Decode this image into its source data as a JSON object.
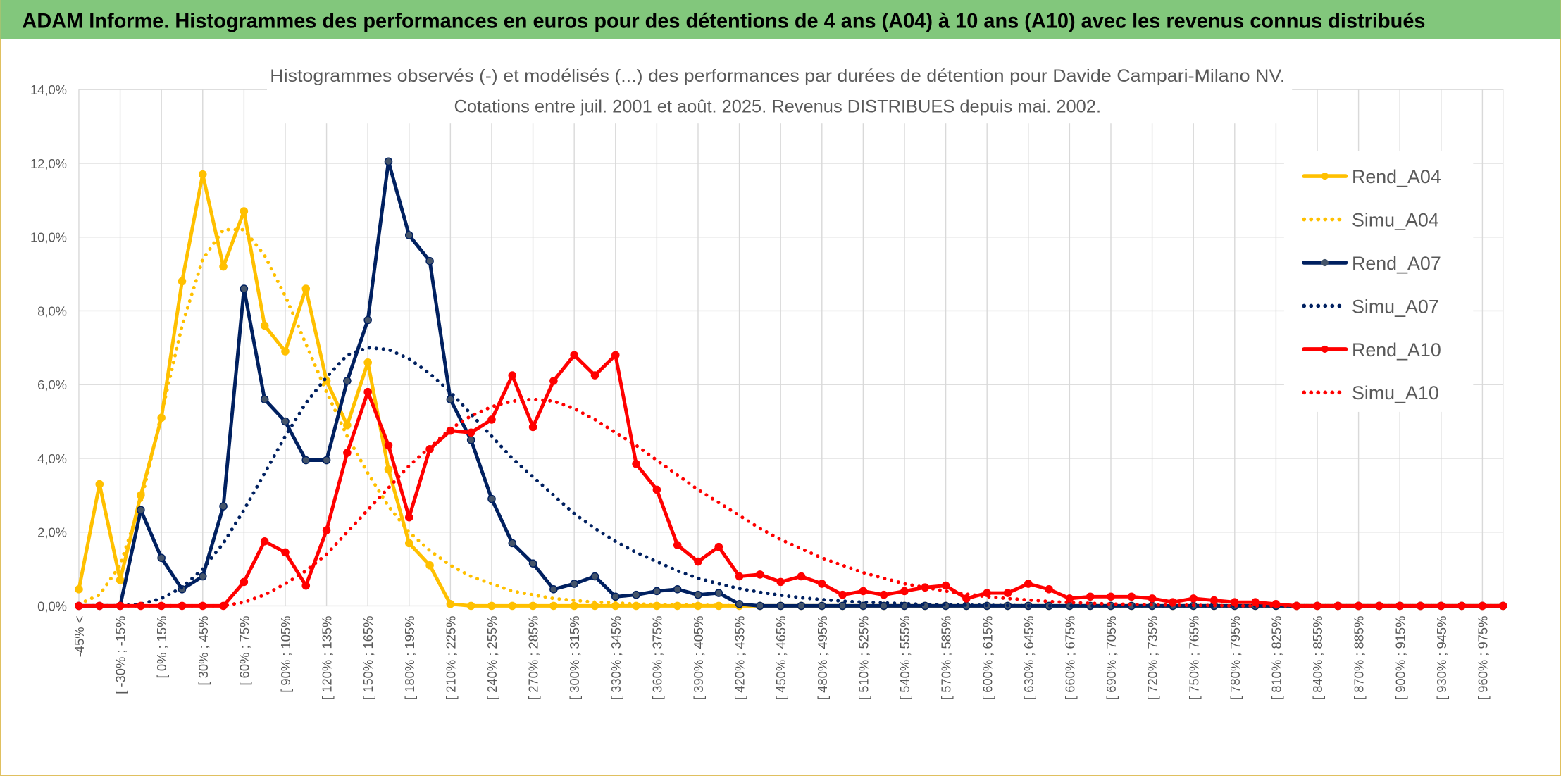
{
  "header": {
    "title": "ADAM Informe. Histogrammes des performances en euros pour des détentions de 4 ans (A04) à 10 ans (A10) avec les revenus connus distribués"
  },
  "chart_data": {
    "type": "line",
    "title": "Histogrammes observés (-) et modélisés (...) des performances par durées de détention pour Davide Campari-Milano NV.",
    "subtitle": "Cotations entre juil. 2001 et août. 2025. Revenus DISTRIBUES depuis mai. 2002.",
    "categories": [
      "-45% <",
      null,
      "[ -30% ; -15%",
      null,
      "[ 0% ; 15%",
      null,
      "[ 30% ; 45%",
      null,
      "[ 60% ; 75%",
      null,
      "[ 90% ; 105%",
      null,
      "[ 120% ; 135%",
      null,
      "[ 150% ; 165%",
      null,
      "[ 180% ; 195%",
      null,
      "[ 210% ; 225%",
      null,
      "[ 240% ; 255%",
      null,
      "[ 270% ; 285%",
      null,
      "[ 300% ; 315%",
      null,
      "[ 330% ; 345%",
      null,
      "[ 360% ; 375%",
      null,
      "[ 390% ; 405%",
      null,
      "[ 420% ; 435%",
      null,
      "[ 450% ; 465%",
      null,
      "[ 480% ; 495%",
      null,
      "[ 510% ; 525%",
      null,
      "[ 540% ; 555%",
      null,
      "[ 570% ; 585%",
      null,
      "[ 600% ; 615%",
      null,
      "[ 630% ; 645%",
      null,
      "[ 660% ; 675%",
      null,
      "[ 690% ; 705%",
      null,
      "[ 720% ; 735%",
      null,
      "[ 750% ; 765%",
      null,
      "[ 780% ; 795%",
      null,
      "[ 810% ; 825%",
      null,
      "[ 840% ; 855%",
      null,
      "[ 870% ; 885%",
      null,
      "[ 900% ; 915%",
      null,
      "[ 930% ; 945%",
      null,
      "[ 960% ; 975%",
      null
    ],
    "series": [
      {
        "name": "Rend_A04",
        "color": "#ffc000",
        "style": "solid",
        "markers": true,
        "values": [
          0.45,
          3.3,
          0.7,
          3.0,
          5.1,
          8.8,
          11.7,
          9.2,
          10.7,
          7.6,
          6.9,
          8.6,
          6.1,
          4.9,
          6.6,
          3.7,
          1.7,
          1.1,
          0.05,
          0,
          0,
          0,
          0,
          0,
          0,
          0,
          0,
          0,
          0,
          0,
          0,
          0,
          0,
          0,
          0,
          0,
          0,
          0,
          0,
          0,
          0,
          0,
          0,
          0,
          0,
          0,
          0,
          0,
          0,
          0,
          0,
          0,
          0,
          0,
          0,
          0,
          0,
          0,
          0,
          0,
          0,
          0,
          0,
          0,
          0,
          0,
          0,
          0,
          0,
          0
        ]
      },
      {
        "name": "Simu_A04",
        "color": "#ffc000",
        "style": "dotted",
        "markers": false,
        "values": [
          0.05,
          0.3,
          1.1,
          2.8,
          5.2,
          7.6,
          9.4,
          10.2,
          10.2,
          9.5,
          8.4,
          7.1,
          5.8,
          4.6,
          3.6,
          2.7,
          2.0,
          1.5,
          1.1,
          0.8,
          0.6,
          0.4,
          0.3,
          0.2,
          0.15,
          0.1,
          0.08,
          0.05,
          0.04,
          0.03,
          0.02,
          0.01,
          0,
          0,
          0,
          0,
          0,
          0,
          0,
          0,
          0,
          0,
          0,
          0,
          0,
          0,
          0,
          0,
          0,
          0,
          0,
          0,
          0,
          0,
          0,
          0,
          0,
          0,
          0,
          0,
          0,
          0,
          0,
          0,
          0,
          0,
          0,
          0,
          0,
          0
        ]
      },
      {
        "name": "Rend_A07",
        "color": "#002060",
        "style": "solid",
        "markers": true,
        "values": [
          0,
          0,
          0,
          2.6,
          1.3,
          0.45,
          0.8,
          2.7,
          8.6,
          5.6,
          5.0,
          3.95,
          3.95,
          6.1,
          7.75,
          12.05,
          10.05,
          9.35,
          5.6,
          4.5,
          2.9,
          1.7,
          1.15,
          0.45,
          0.6,
          0.8,
          0.25,
          0.3,
          0.4,
          0.45,
          0.3,
          0.35,
          0.05,
          0,
          0,
          0,
          0,
          0,
          0,
          0,
          0,
          0,
          0,
          0,
          0,
          0,
          0,
          0,
          0,
          0,
          0,
          0,
          0,
          0,
          0,
          0,
          0,
          0,
          0,
          0,
          0,
          0,
          0,
          0,
          0,
          0,
          0,
          0,
          0,
          0
        ]
      },
      {
        "name": "Simu_A07",
        "color": "#002060",
        "style": "dotted",
        "markers": false,
        "values": [
          0,
          0,
          0,
          0.05,
          0.2,
          0.5,
          1.0,
          1.7,
          2.6,
          3.6,
          4.6,
          5.5,
          6.2,
          6.8,
          7.0,
          6.95,
          6.7,
          6.3,
          5.8,
          5.2,
          4.6,
          4.0,
          3.5,
          3.0,
          2.5,
          2.1,
          1.75,
          1.45,
          1.2,
          0.95,
          0.75,
          0.6,
          0.47,
          0.37,
          0.29,
          0.22,
          0.17,
          0.13,
          0.1,
          0.08,
          0.06,
          0.04,
          0.03,
          0.02,
          0.015,
          0.01,
          0,
          0,
          0,
          0,
          0,
          0,
          0,
          0,
          0,
          0,
          0,
          0,
          0,
          0,
          0,
          0,
          0,
          0,
          0,
          0,
          0,
          0,
          0,
          0
        ]
      },
      {
        "name": "Rend_A10",
        "color": "#ff0000",
        "style": "solid",
        "markers": true,
        "values": [
          0,
          0,
          0,
          0,
          0,
          0,
          0,
          0,
          0.65,
          1.75,
          1.45,
          0.55,
          2.05,
          4.15,
          5.8,
          4.35,
          2.4,
          4.25,
          4.75,
          4.7,
          5.05,
          6.25,
          4.85,
          6.1,
          6.8,
          6.25,
          6.8,
          3.85,
          3.15,
          1.65,
          1.2,
          1.6,
          0.8,
          0.85,
          0.65,
          0.8,
          0.6,
          0.3,
          0.4,
          0.3,
          0.4,
          0.5,
          0.55,
          0.2,
          0.35,
          0.35,
          0.6,
          0.45,
          0.2,
          0.25,
          0.25,
          0.25,
          0.2,
          0.1,
          0.2,
          0.15,
          0.1,
          0.1,
          0.05,
          0,
          0,
          0,
          0,
          0,
          0,
          0,
          0,
          0,
          0,
          0
        ]
      },
      {
        "name": "Simu_A10",
        "color": "#ff0000",
        "style": "dotted",
        "markers": false,
        "values": [
          0,
          0,
          0,
          0,
          0,
          0,
          0,
          0,
          0.1,
          0.3,
          0.6,
          0.95,
          1.4,
          2.0,
          2.6,
          3.2,
          3.8,
          4.3,
          4.8,
          5.15,
          5.4,
          5.55,
          5.6,
          5.55,
          5.35,
          5.05,
          4.7,
          4.35,
          3.95,
          3.55,
          3.15,
          2.8,
          2.45,
          2.1,
          1.8,
          1.55,
          1.3,
          1.1,
          0.9,
          0.75,
          0.6,
          0.5,
          0.4,
          0.32,
          0.25,
          0.2,
          0.16,
          0.12,
          0.09,
          0.07,
          0.05,
          0.04,
          0.03,
          0.02,
          0.015,
          0.01,
          0,
          0,
          0,
          0,
          0,
          0,
          0,
          0,
          0,
          0,
          0,
          0,
          0,
          0
        ]
      }
    ],
    "ylim": [
      0,
      14
    ],
    "yticks": [
      {
        "value": 0,
        "label": "0,0%"
      },
      {
        "value": 2,
        "label": "2,0%"
      },
      {
        "value": 4,
        "label": "4,0%"
      },
      {
        "value": 6,
        "label": "6,0%"
      },
      {
        "value": 8,
        "label": "8,0%"
      },
      {
        "value": 10,
        "label": "10,0%"
      },
      {
        "value": 12,
        "label": "12,0%"
      },
      {
        "value": 14,
        "label": "14,0%"
      }
    ],
    "grid": true,
    "legend": "right"
  }
}
